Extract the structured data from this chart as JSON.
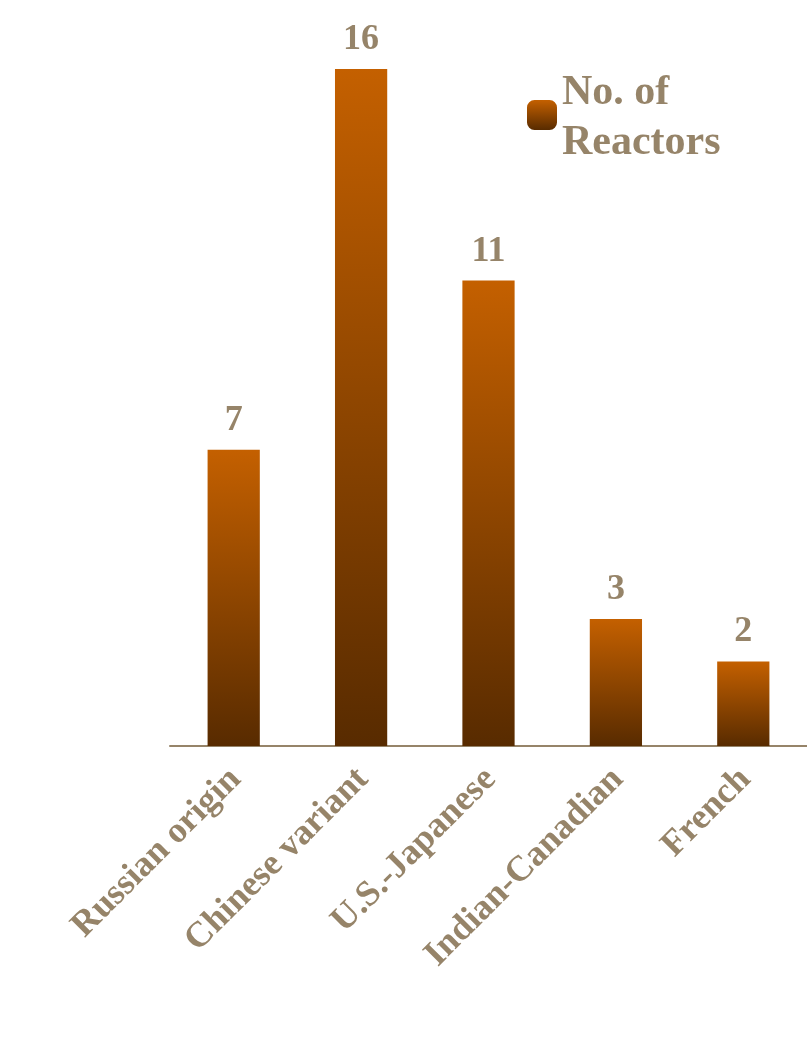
{
  "chart_data": {
    "type": "bar",
    "categories": [
      "Russian origin",
      "Chinese variant",
      "U.S.-Japanese",
      "Indian-Canadian",
      "French"
    ],
    "series": [
      {
        "name": "No. of Reactors",
        "color": "#c46000",
        "values": [
          7,
          16,
          11,
          3,
          2
        ]
      }
    ],
    "data_labels": true,
    "legend": "top right",
    "grid": false
  }
}
